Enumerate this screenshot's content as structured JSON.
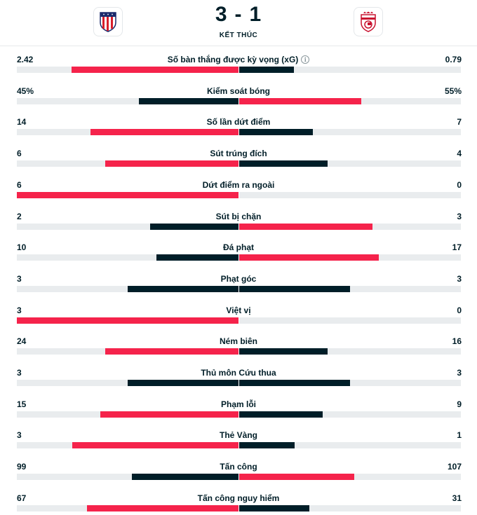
{
  "match": {
    "home_score": "3",
    "away_score": "1",
    "separator": "-",
    "status": "KẾT THÚC",
    "home_logo_icon": "atletico-madrid-crest-icon",
    "away_logo_icon": "granada-crest-icon"
  },
  "colors": {
    "leader": "#f5234b",
    "trailer": "#001e28",
    "track": "#e9ecee"
  },
  "stats": [
    {
      "label": "Số bàn thắng được kỳ vọng (xG)",
      "home": "2.42",
      "away": "0.79",
      "home_share": 0.754,
      "away_share": 0.246,
      "info": true
    },
    {
      "label": "Kiểm soát bóng",
      "home": "45%",
      "away": "55%",
      "home_share": 0.45,
      "away_share": 0.55
    },
    {
      "label": "Số lần dứt điểm",
      "home": "14",
      "away": "7",
      "home_share": 0.667,
      "away_share": 0.333
    },
    {
      "label": "Sút trúng đích",
      "home": "6",
      "away": "4",
      "home_share": 0.6,
      "away_share": 0.4
    },
    {
      "label": "Dứt điểm ra ngoài",
      "home": "6",
      "away": "0",
      "home_share": 1.0,
      "away_share": 0.0
    },
    {
      "label": "Sút bị chặn",
      "home": "2",
      "away": "3",
      "home_share": 0.4,
      "away_share": 0.6
    },
    {
      "label": "Đá phạt",
      "home": "10",
      "away": "17",
      "home_share": 0.37,
      "away_share": 0.63
    },
    {
      "label": "Phạt góc",
      "home": "3",
      "away": "3",
      "home_share": 0.5,
      "away_share": 0.5
    },
    {
      "label": "Việt vị",
      "home": "3",
      "away": "0",
      "home_share": 1.0,
      "away_share": 0.0
    },
    {
      "label": "Ném biên",
      "home": "24",
      "away": "16",
      "home_share": 0.6,
      "away_share": 0.4
    },
    {
      "label": "Thủ môn Cứu thua",
      "home": "3",
      "away": "3",
      "home_share": 0.5,
      "away_share": 0.5
    },
    {
      "label": "Phạm lỗi",
      "home": "15",
      "away": "9",
      "home_share": 0.625,
      "away_share": 0.375
    },
    {
      "label": "Thẻ Vàng",
      "home": "3",
      "away": "1",
      "home_share": 0.75,
      "away_share": 0.25
    },
    {
      "label": "Tấn công",
      "home": "99",
      "away": "107",
      "home_share": 0.48,
      "away_share": 0.52
    },
    {
      "label": "Tấn công nguy hiểm",
      "home": "67",
      "away": "31",
      "home_share": 0.684,
      "away_share": 0.316
    }
  ]
}
